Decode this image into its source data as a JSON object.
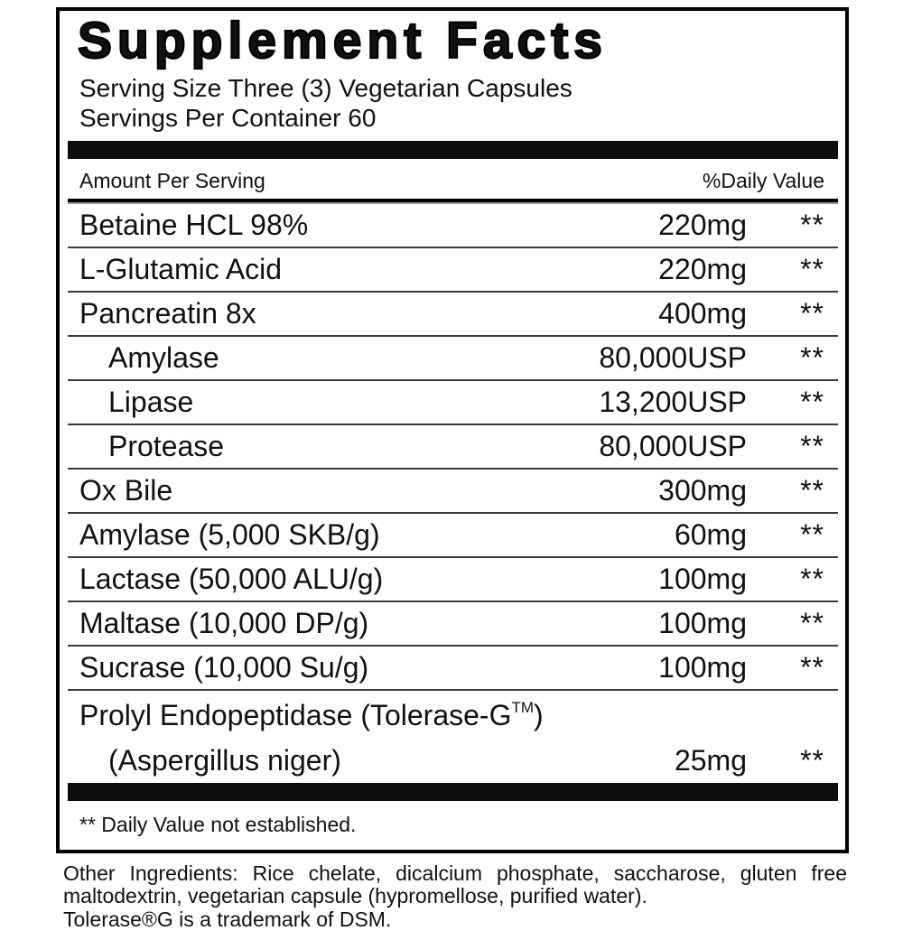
{
  "panel": {
    "title": "Supplement Facts",
    "serving_size": "Serving Size Three (3) Vegetarian Capsules",
    "servings_per_container": "Servings Per Container 60",
    "columns": {
      "amount": "Amount Per Serving",
      "daily_value": "%Daily Value"
    },
    "rows": [
      {
        "name": "Betaine HCL 98%",
        "amount": "220mg",
        "daily_value": "**",
        "indent": false
      },
      {
        "name": "L-Glutamic Acid",
        "amount": "220mg",
        "daily_value": "**",
        "indent": false
      },
      {
        "name": "Pancreatin 8x",
        "amount": "400mg",
        "daily_value": "**",
        "indent": false
      },
      {
        "name": "Amylase",
        "amount": "80,000USP",
        "daily_value": "**",
        "indent": true
      },
      {
        "name": "Lipase",
        "amount": "13,200USP",
        "daily_value": "**",
        "indent": true
      },
      {
        "name": "Protease",
        "amount": "80,000USP",
        "daily_value": "**",
        "indent": true
      },
      {
        "name": "Ox Bile",
        "amount": "300mg",
        "daily_value": "**",
        "indent": false
      },
      {
        "name": "Amylase (5,000 SKB/g)",
        "amount": "60mg",
        "daily_value": "**",
        "indent": false
      },
      {
        "name": "Lactase (50,000 ALU/g)",
        "amount": "100mg",
        "daily_value": "**",
        "indent": false
      },
      {
        "name": "Maltase (10,000 DP/g)",
        "amount": "100mg",
        "daily_value": "**",
        "indent": false
      },
      {
        "name": "Sucrase (10,000 Su/g)",
        "amount": "100mg",
        "daily_value": "**",
        "indent": false
      },
      {
        "name": "Prolyl Endopeptidase (Tolerase-G",
        "name_superscript": "TM",
        "name_suffix": ")",
        "name_line2": "(Aspergillus niger)",
        "amount": "25mg",
        "daily_value": "**",
        "indent": true,
        "two_line": true
      }
    ],
    "footnote": "** Daily Value not established."
  },
  "footer": {
    "other_ingredients": "Other Ingredients: Rice chelate, dicalcium phosphate, saccharose, gluten free maltodextrin, vegetarian capsule (hypromellose, purified water).",
    "trademark_note": "Tolerase®G  is a  trademark of DSM."
  },
  "colors": {
    "text": "#111111",
    "bar": "#0d0d0d",
    "thin_rule": "#3c3c3c",
    "background": "#ffffff"
  }
}
